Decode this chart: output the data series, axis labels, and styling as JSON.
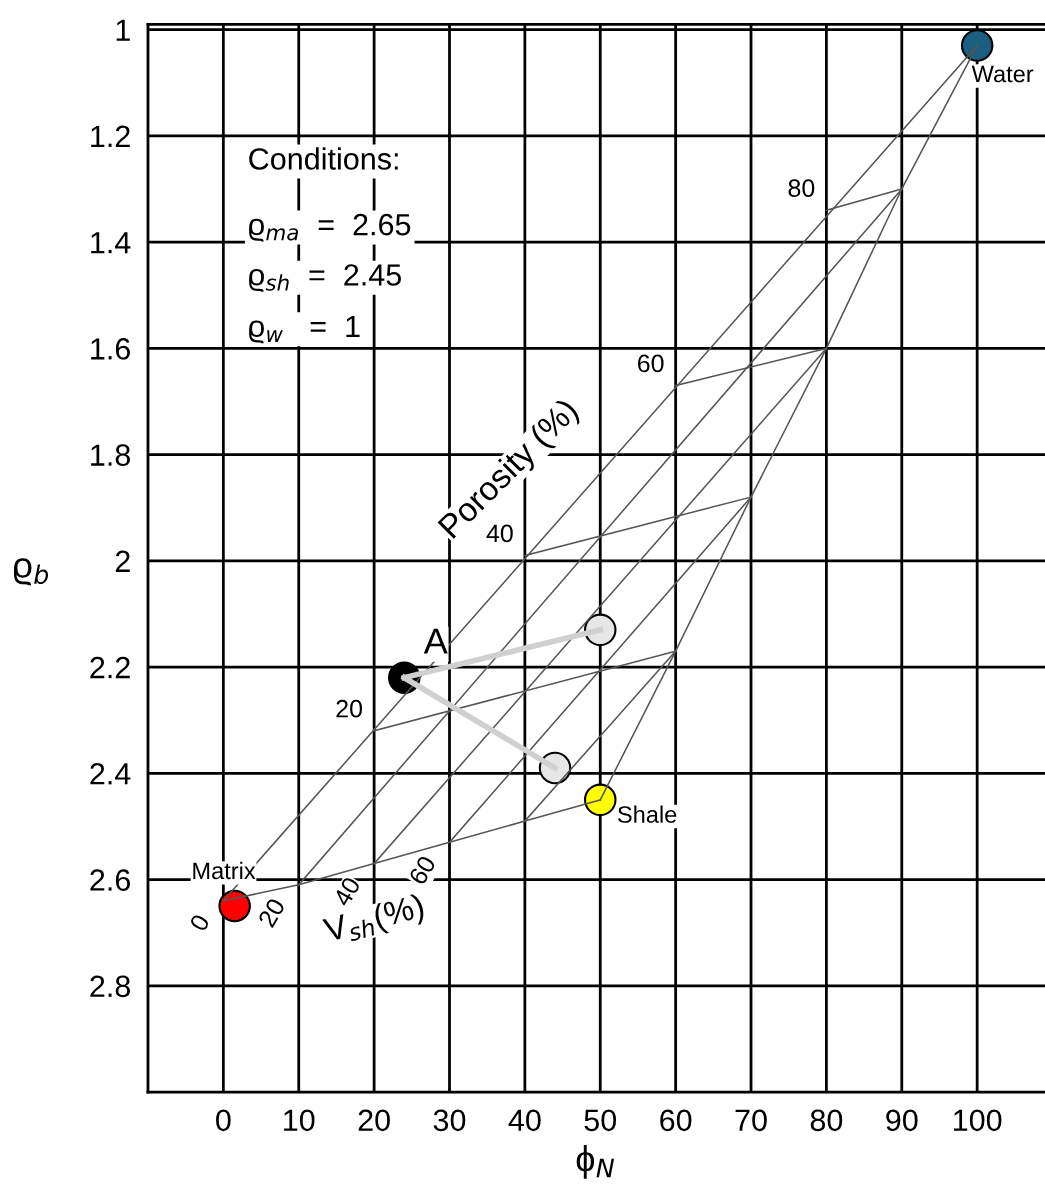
{
  "chart_data": {
    "type": "line",
    "xlabel": "ϕ$_{N}$",
    "ylabel": "ϱ$_{b}$",
    "xlim": [
      -10,
      109
    ],
    "ylim": [
      3.0,
      0.99
    ],
    "xticks": [
      0,
      10,
      20,
      30,
      40,
      50,
      60,
      70,
      80,
      90,
      100
    ],
    "yticks": [
      1,
      1.2,
      1.4,
      1.6,
      1.8,
      2,
      2.2,
      2.4,
      2.6,
      2.8
    ],
    "grid": true,
    "marker": "none",
    "line_style": "solid",
    "series": [
      {
        "color": "#555555",
        "x": [
          0,
          100
        ],
        "values": [
          2.64,
          1.03
        ]
      },
      {
        "color": "#555555",
        "x": [
          10,
          90
        ],
        "values": [
          2.61,
          1.3
        ]
      },
      {
        "color": "#555555",
        "x": [
          20,
          80
        ],
        "values": [
          2.57,
          1.6
        ]
      },
      {
        "color": "#555555",
        "x": [
          30,
          70
        ],
        "values": [
          2.53,
          1.88
        ]
      },
      {
        "color": "#555555",
        "x": [
          40,
          60
        ],
        "values": [
          2.49,
          2.17
        ]
      },
      {
        "color": "#555555",
        "x": [
          0,
          10,
          20,
          30,
          40,
          50
        ],
        "values": [
          2.64,
          2.61,
          2.57,
          2.53,
          2.49,
          2.45
        ]
      },
      {
        "color": "#555555",
        "x": [
          50,
          60,
          70,
          80,
          90,
          100
        ],
        "values": [
          2.45,
          2.17,
          1.88,
          1.6,
          1.3,
          1.03
        ]
      },
      {
        "color": "#555555",
        "x": [
          20,
          60
        ],
        "values": [
          2.32,
          2.17
        ]
      },
      {
        "color": "#555555",
        "x": [
          40,
          70
        ],
        "values": [
          1.99,
          1.88
        ]
      },
      {
        "color": "#555555",
        "x": [
          60,
          80
        ],
        "values": [
          1.67,
          1.6
        ]
      },
      {
        "color": "#555555",
        "x": [
          80,
          90
        ],
        "values": [
          1.34,
          1.3
        ]
      },
      {
        "color": "#d0d0d0",
        "x": [
          24,
          50
        ],
        "values": [
          2.22,
          2.13
        ]
      },
      {
        "color": "#d0d0d0",
        "x": [
          24,
          44
        ],
        "values": [
          2.22,
          2.39
        ]
      },
      {
        "type": "scatter",
        "marker": "circle",
        "color": "#e6e6e6",
        "x": [
          50,
          44
        ],
        "values": [
          2.13,
          2.39
        ]
      },
      {
        "type": "scatter",
        "marker": "circle",
        "name": "A",
        "color": "#000000",
        "x": [
          24
        ],
        "values": [
          2.22
        ]
      },
      {
        "type": "scatter",
        "marker": "circle",
        "name": "Matrix",
        "color": "#ff0000",
        "x": [
          1.5
        ],
        "values": [
          2.65
        ]
      },
      {
        "type": "scatter",
        "marker": "circle",
        "name": "Water",
        "color": "#1a5e80",
        "x": [
          100
        ],
        "values": [
          1.03
        ]
      },
      {
        "type": "scatter",
        "marker": "circle",
        "name": "Shale",
        "color": "#ffff00",
        "x": [
          50
        ],
        "values": [
          2.45
        ]
      }
    ],
    "annotations": [
      "Conditions:",
      "ϱ$_{ma}$  =  2.65",
      "ϱ$_{sh}$  =  2.45",
      "ϱ$_{w}$   =  1",
      {
        "text": "20",
        "x": 20,
        "y": 2.32
      },
      {
        "text": "40",
        "x": 40,
        "y": 1.99
      },
      {
        "text": "60",
        "x": 60,
        "y": 1.67
      },
      {
        "text": "80",
        "x": 80,
        "y": 1.34
      },
      {
        "text": "0",
        "x": 0,
        "y": 2.64
      },
      {
        "text": "20",
        "x": 10,
        "y": 2.61
      },
      {
        "text": "40",
        "x": 20,
        "y": 2.57
      },
      {
        "text": "60",
        "x": 30,
        "y": 2.53
      },
      "Porosity (%)",
      "V$_{sh}$(%)"
    ]
  }
}
